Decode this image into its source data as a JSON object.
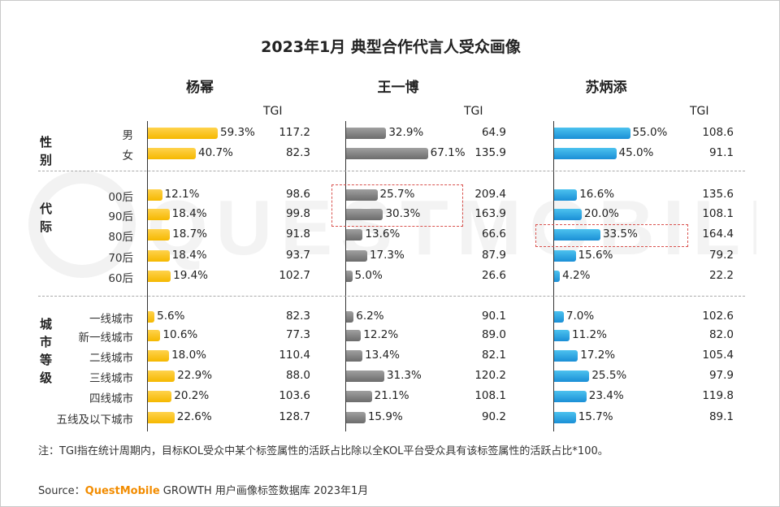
{
  "title": "2023年1月 典型合作代言人受众画像",
  "tgi_label": "TGI",
  "groups": [
    {
      "name": "性别",
      "categories": [
        "男",
        "女"
      ]
    },
    {
      "name": "代际",
      "categories": [
        "00后",
        "90后",
        "80后",
        "70后",
        "60后"
      ]
    },
    {
      "name": "城市等级",
      "categories": [
        "一线城市",
        "新一线城市",
        "二线城市",
        "三线城市",
        "四线城市",
        "五线及以下城市"
      ]
    }
  ],
  "chart_data": {
    "type": "bar",
    "orientation": "horizontal",
    "categories": [
      "男",
      "女",
      "00后",
      "90后",
      "80后",
      "70后",
      "60后",
      "一线城市",
      "新一线城市",
      "二线城市",
      "三线城市",
      "四线城市",
      "五线及以下城市"
    ],
    "series": [
      {
        "name": "杨幂",
        "color": "#f5b800",
        "values": [
          59.3,
          40.7,
          12.1,
          18.4,
          18.7,
          18.4,
          19.4,
          5.6,
          10.6,
          18.0,
          22.9,
          20.2,
          22.6
        ],
        "labels": [
          "59.3%",
          "40.7%",
          "12.1%",
          "18.4%",
          "18.7%",
          "18.4%",
          "19.4%",
          "5.6%",
          "10.6%",
          "18.0%",
          "22.9%",
          "20.2%",
          "22.6%"
        ],
        "tgi": [
          "117.2",
          "82.3",
          "98.6",
          "99.8",
          "91.8",
          "93.7",
          "102.7",
          "82.3",
          "77.3",
          "110.4",
          "88.0",
          "103.6",
          "128.7"
        ]
      },
      {
        "name": "王一博",
        "color": "#808080",
        "values": [
          32.9,
          67.1,
          25.7,
          30.3,
          13.6,
          17.3,
          5.0,
          6.2,
          12.2,
          13.4,
          31.3,
          21.1,
          15.9
        ],
        "labels": [
          "32.9%",
          "67.1%",
          "25.7%",
          "30.3%",
          "13.6%",
          "17.3%",
          "5.0%",
          "6.2%",
          "12.2%",
          "13.4%",
          "31.3%",
          "21.1%",
          "15.9%"
        ],
        "tgi": [
          "64.9",
          "135.9",
          "209.4",
          "163.9",
          "66.6",
          "87.9",
          "26.6",
          "90.1",
          "89.0",
          "82.1",
          "120.2",
          "108.1",
          "90.2"
        ]
      },
      {
        "name": "苏炳添",
        "color": "#1a8fd6",
        "values": [
          55.0,
          45.0,
          16.6,
          20.0,
          33.5,
          15.6,
          4.2,
          7.0,
          11.2,
          17.2,
          25.5,
          23.4,
          15.7
        ],
        "labels": [
          "55.0%",
          "45.0%",
          "16.6%",
          "20.0%",
          "33.5%",
          "15.6%",
          "4.2%",
          "7.0%",
          "11.2%",
          "17.2%",
          "25.5%",
          "23.4%",
          "15.7%"
        ],
        "tgi": [
          "108.6",
          "91.1",
          "135.6",
          "108.1",
          "164.4",
          "79.2",
          "22.2",
          "102.6",
          "82.0",
          "105.4",
          "97.9",
          "119.8",
          "89.1"
        ]
      }
    ],
    "xlim": [
      0,
      100
    ],
    "unit": "%",
    "highlighted": [
      {
        "series": "王一博",
        "categories": [
          "00后",
          "90后"
        ]
      },
      {
        "series": "苏炳添",
        "categories": [
          "80后"
        ]
      }
    ]
  },
  "note": "注：TGI指在统计周期内，目标KOL受众中某个标签属性的活跃占比除以全KOL平台受众具有该标签属性的活跃占比*100。",
  "source": {
    "prefix": "Source：",
    "brand": "QuestMobile",
    "rest": " GROWTH 用户画像标签数据库 2023年1月"
  },
  "watermark": "QUESTMOBILE"
}
